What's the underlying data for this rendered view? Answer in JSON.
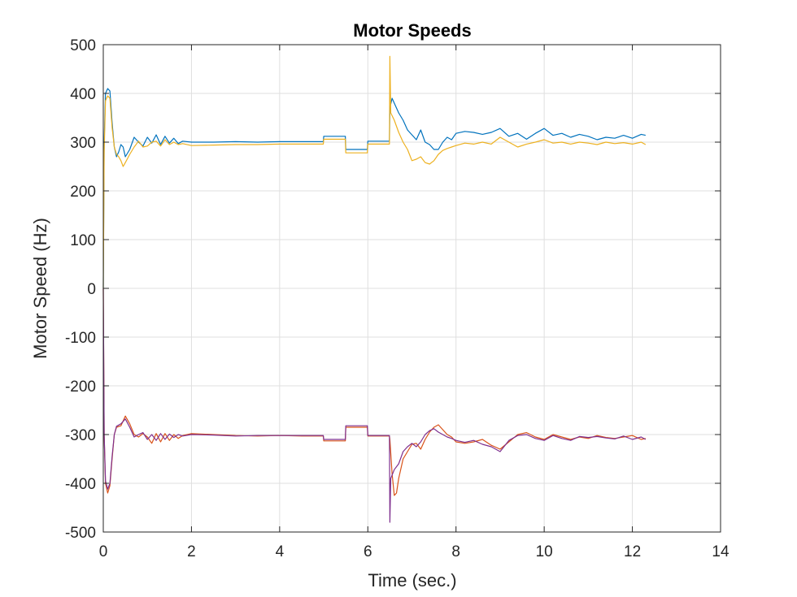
{
  "chart_data": {
    "type": "line",
    "title": "Motor Speeds",
    "xlabel": "Time (sec.)",
    "ylabel": "Motor Speed (Hz)",
    "xlim": [
      0,
      14
    ],
    "ylim": [
      -500,
      500
    ],
    "xticks": [
      0,
      2,
      4,
      6,
      8,
      10,
      12,
      14
    ],
    "yticks": [
      -500,
      -400,
      -300,
      -200,
      -100,
      0,
      100,
      200,
      300,
      400,
      500
    ],
    "grid": true,
    "legend": "none",
    "series": [
      {
        "color": "#0072BD",
        "points": [
          [
            0,
            0
          ],
          [
            0.02,
            300
          ],
          [
            0.05,
            400
          ],
          [
            0.1,
            410
          ],
          [
            0.15,
            405
          ],
          [
            0.2,
            340
          ],
          [
            0.25,
            290
          ],
          [
            0.3,
            270
          ],
          [
            0.35,
            280
          ],
          [
            0.4,
            295
          ],
          [
            0.45,
            290
          ],
          [
            0.5,
            270
          ],
          [
            0.6,
            285
          ],
          [
            0.7,
            310
          ],
          [
            0.8,
            300
          ],
          [
            0.9,
            292
          ],
          [
            1.0,
            310
          ],
          [
            1.1,
            298
          ],
          [
            1.2,
            315
          ],
          [
            1.3,
            295
          ],
          [
            1.4,
            312
          ],
          [
            1.5,
            298
          ],
          [
            1.6,
            308
          ],
          [
            1.7,
            297
          ],
          [
            1.8,
            302
          ],
          [
            2.0,
            300
          ],
          [
            2.5,
            300
          ],
          [
            3.0,
            301
          ],
          [
            3.5,
            300
          ],
          [
            4.0,
            301
          ],
          [
            4.5,
            301
          ],
          [
            4.99,
            301
          ],
          [
            5.0,
            312
          ],
          [
            5.49,
            312
          ],
          [
            5.5,
            285
          ],
          [
            5.99,
            285
          ],
          [
            6.0,
            302
          ],
          [
            6.49,
            302
          ],
          [
            6.5,
            370
          ],
          [
            6.55,
            390
          ],
          [
            6.6,
            380
          ],
          [
            6.7,
            360
          ],
          [
            6.8,
            345
          ],
          [
            6.9,
            325
          ],
          [
            7.0,
            315
          ],
          [
            7.1,
            305
          ],
          [
            7.2,
            325
          ],
          [
            7.3,
            300
          ],
          [
            7.4,
            295
          ],
          [
            7.5,
            285
          ],
          [
            7.6,
            285
          ],
          [
            7.7,
            300
          ],
          [
            7.8,
            310
          ],
          [
            7.9,
            305
          ],
          [
            8.0,
            318
          ],
          [
            8.2,
            322
          ],
          [
            8.4,
            320
          ],
          [
            8.6,
            316
          ],
          [
            8.8,
            320
          ],
          [
            9.0,
            328
          ],
          [
            9.2,
            312
          ],
          [
            9.4,
            318
          ],
          [
            9.6,
            306
          ],
          [
            9.8,
            318
          ],
          [
            10.0,
            328
          ],
          [
            10.2,
            314
          ],
          [
            10.4,
            318
          ],
          [
            10.6,
            310
          ],
          [
            10.8,
            316
          ],
          [
            11.0,
            312
          ],
          [
            11.2,
            305
          ],
          [
            11.4,
            310
          ],
          [
            11.6,
            308
          ],
          [
            11.8,
            314
          ],
          [
            12.0,
            308
          ],
          [
            12.2,
            316
          ],
          [
            12.3,
            314
          ]
        ]
      },
      {
        "color": "#EDB120",
        "points": [
          [
            0,
            0
          ],
          [
            0.02,
            280
          ],
          [
            0.05,
            385
          ],
          [
            0.1,
            395
          ],
          [
            0.15,
            390
          ],
          [
            0.2,
            330
          ],
          [
            0.25,
            290
          ],
          [
            0.3,
            275
          ],
          [
            0.35,
            270
          ],
          [
            0.4,
            262
          ],
          [
            0.45,
            250
          ],
          [
            0.5,
            258
          ],
          [
            0.6,
            275
          ],
          [
            0.7,
            290
          ],
          [
            0.8,
            302
          ],
          [
            0.9,
            290
          ],
          [
            1.0,
            292
          ],
          [
            1.1,
            300
          ],
          [
            1.2,
            302
          ],
          [
            1.3,
            292
          ],
          [
            1.4,
            305
          ],
          [
            1.5,
            295
          ],
          [
            1.6,
            300
          ],
          [
            1.7,
            295
          ],
          [
            1.8,
            297
          ],
          [
            2.0,
            293
          ],
          [
            2.5,
            294
          ],
          [
            3.0,
            295
          ],
          [
            3.5,
            295
          ],
          [
            4.0,
            296
          ],
          [
            4.5,
            296
          ],
          [
            4.99,
            296
          ],
          [
            5.0,
            306
          ],
          [
            5.49,
            306
          ],
          [
            5.5,
            278
          ],
          [
            5.99,
            278
          ],
          [
            6.0,
            296
          ],
          [
            6.49,
            296
          ],
          [
            6.5,
            476
          ],
          [
            6.52,
            360
          ],
          [
            6.6,
            345
          ],
          [
            6.7,
            320
          ],
          [
            6.8,
            300
          ],
          [
            6.9,
            285
          ],
          [
            7.0,
            262
          ],
          [
            7.1,
            265
          ],
          [
            7.2,
            270
          ],
          [
            7.3,
            258
          ],
          [
            7.4,
            255
          ],
          [
            7.5,
            262
          ],
          [
            7.6,
            275
          ],
          [
            7.7,
            283
          ],
          [
            7.8,
            287
          ],
          [
            7.9,
            290
          ],
          [
            8.0,
            293
          ],
          [
            8.2,
            298
          ],
          [
            8.4,
            296
          ],
          [
            8.6,
            300
          ],
          [
            8.8,
            296
          ],
          [
            9.0,
            310
          ],
          [
            9.2,
            300
          ],
          [
            9.4,
            290
          ],
          [
            9.6,
            296
          ],
          [
            9.8,
            300
          ],
          [
            10.0,
            305
          ],
          [
            10.2,
            298
          ],
          [
            10.4,
            300
          ],
          [
            10.6,
            296
          ],
          [
            10.8,
            300
          ],
          [
            11.0,
            298
          ],
          [
            11.2,
            295
          ],
          [
            11.4,
            300
          ],
          [
            11.6,
            297
          ],
          [
            11.8,
            299
          ],
          [
            12.0,
            296
          ],
          [
            12.2,
            300
          ],
          [
            12.3,
            295
          ]
        ]
      },
      {
        "color": "#D95319",
        "points": [
          [
            0,
            0
          ],
          [
            0.02,
            -300
          ],
          [
            0.05,
            -400
          ],
          [
            0.1,
            -420
          ],
          [
            0.15,
            -405
          ],
          [
            0.2,
            -350
          ],
          [
            0.25,
            -300
          ],
          [
            0.3,
            -285
          ],
          [
            0.4,
            -282
          ],
          [
            0.5,
            -262
          ],
          [
            0.6,
            -278
          ],
          [
            0.7,
            -300
          ],
          [
            0.8,
            -305
          ],
          [
            0.9,
            -298
          ],
          [
            1.0,
            -305
          ],
          [
            1.1,
            -318
          ],
          [
            1.2,
            -298
          ],
          [
            1.3,
            -315
          ],
          [
            1.4,
            -298
          ],
          [
            1.5,
            -312
          ],
          [
            1.6,
            -300
          ],
          [
            1.7,
            -308
          ],
          [
            1.8,
            -302
          ],
          [
            2.0,
            -298
          ],
          [
            2.5,
            -300
          ],
          [
            3.0,
            -302
          ],
          [
            3.5,
            -303
          ],
          [
            4.0,
            -302
          ],
          [
            4.5,
            -303
          ],
          [
            4.99,
            -303
          ],
          [
            5.0,
            -313
          ],
          [
            5.49,
            -313
          ],
          [
            5.5,
            -285
          ],
          [
            5.99,
            -285
          ],
          [
            6.0,
            -303
          ],
          [
            6.49,
            -303
          ],
          [
            6.5,
            -310
          ],
          [
            6.55,
            -380
          ],
          [
            6.6,
            -425
          ],
          [
            6.65,
            -420
          ],
          [
            6.7,
            -390
          ],
          [
            6.8,
            -350
          ],
          [
            6.9,
            -335
          ],
          [
            7.0,
            -320
          ],
          [
            7.1,
            -318
          ],
          [
            7.2,
            -330
          ],
          [
            7.3,
            -310
          ],
          [
            7.4,
            -295
          ],
          [
            7.5,
            -285
          ],
          [
            7.6,
            -280
          ],
          [
            7.7,
            -290
          ],
          [
            7.8,
            -300
          ],
          [
            7.9,
            -305
          ],
          [
            8.0,
            -315
          ],
          [
            8.2,
            -318
          ],
          [
            8.4,
            -315
          ],
          [
            8.6,
            -310
          ],
          [
            8.8,
            -322
          ],
          [
            9.0,
            -330
          ],
          [
            9.2,
            -315
          ],
          [
            9.4,
            -300
          ],
          [
            9.6,
            -296
          ],
          [
            9.8,
            -305
          ],
          [
            10.0,
            -310
          ],
          [
            10.2,
            -300
          ],
          [
            10.4,
            -305
          ],
          [
            10.6,
            -310
          ],
          [
            10.8,
            -305
          ],
          [
            11.0,
            -308
          ],
          [
            11.2,
            -302
          ],
          [
            11.4,
            -306
          ],
          [
            11.6,
            -308
          ],
          [
            11.8,
            -305
          ],
          [
            12.0,
            -302
          ],
          [
            12.2,
            -310
          ],
          [
            12.3,
            -308
          ]
        ]
      },
      {
        "color": "#7E2F8E",
        "points": [
          [
            0,
            0
          ],
          [
            0.02,
            -300
          ],
          [
            0.05,
            -395
          ],
          [
            0.1,
            -412
          ],
          [
            0.15,
            -400
          ],
          [
            0.2,
            -345
          ],
          [
            0.25,
            -300
          ],
          [
            0.3,
            -283
          ],
          [
            0.4,
            -278
          ],
          [
            0.5,
            -268
          ],
          [
            0.6,
            -285
          ],
          [
            0.7,
            -305
          ],
          [
            0.8,
            -300
          ],
          [
            0.9,
            -296
          ],
          [
            1.0,
            -310
          ],
          [
            1.1,
            -300
          ],
          [
            1.2,
            -312
          ],
          [
            1.3,
            -298
          ],
          [
            1.4,
            -310
          ],
          [
            1.5,
            -299
          ],
          [
            1.6,
            -306
          ],
          [
            1.7,
            -300
          ],
          [
            1.8,
            -303
          ],
          [
            2.0,
            -300
          ],
          [
            2.5,
            -301
          ],
          [
            3.0,
            -303
          ],
          [
            3.5,
            -302
          ],
          [
            4.0,
            -302
          ],
          [
            4.5,
            -302
          ],
          [
            4.99,
            -302
          ],
          [
            5.0,
            -310
          ],
          [
            5.49,
            -310
          ],
          [
            5.5,
            -282
          ],
          [
            5.99,
            -282
          ],
          [
            6.0,
            -302
          ],
          [
            6.49,
            -302
          ],
          [
            6.5,
            -480
          ],
          [
            6.52,
            -390
          ],
          [
            6.6,
            -372
          ],
          [
            6.7,
            -360
          ],
          [
            6.8,
            -335
          ],
          [
            6.9,
            -325
          ],
          [
            7.0,
            -318
          ],
          [
            7.1,
            -325
          ],
          [
            7.2,
            -315
          ],
          [
            7.3,
            -300
          ],
          [
            7.4,
            -292
          ],
          [
            7.5,
            -288
          ],
          [
            7.6,
            -295
          ],
          [
            7.7,
            -300
          ],
          [
            7.8,
            -305
          ],
          [
            7.9,
            -308
          ],
          [
            8.0,
            -312
          ],
          [
            8.2,
            -316
          ],
          [
            8.4,
            -312
          ],
          [
            8.6,
            -320
          ],
          [
            8.8,
            -325
          ],
          [
            9.0,
            -335
          ],
          [
            9.2,
            -312
          ],
          [
            9.4,
            -302
          ],
          [
            9.6,
            -300
          ],
          [
            9.8,
            -308
          ],
          [
            10.0,
            -312
          ],
          [
            10.2,
            -302
          ],
          [
            10.4,
            -308
          ],
          [
            10.6,
            -312
          ],
          [
            10.8,
            -304
          ],
          [
            11.0,
            -306
          ],
          [
            11.2,
            -304
          ],
          [
            11.4,
            -307
          ],
          [
            11.6,
            -309
          ],
          [
            11.8,
            -303
          ],
          [
            12.0,
            -310
          ],
          [
            12.2,
            -305
          ],
          [
            12.3,
            -310
          ]
        ]
      }
    ]
  }
}
